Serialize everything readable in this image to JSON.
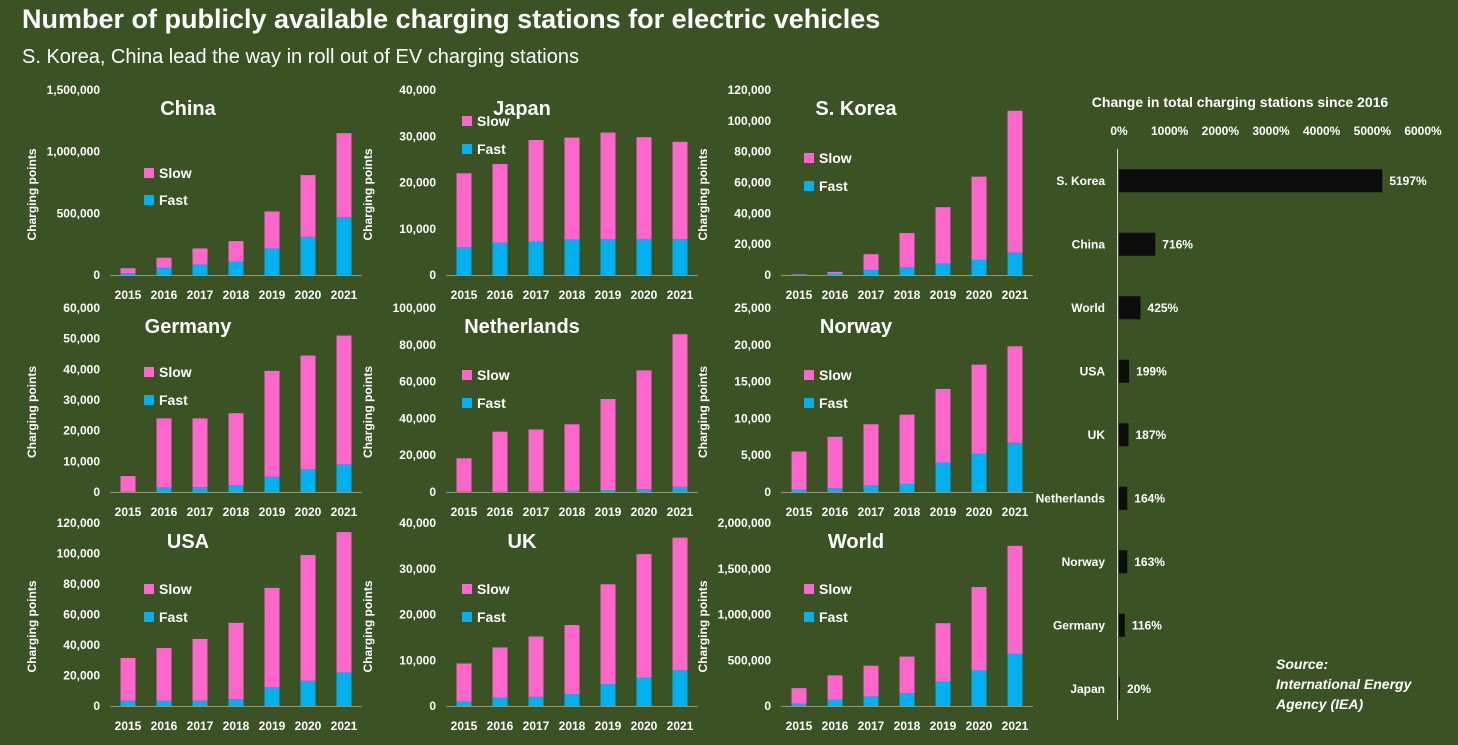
{
  "title": "Number of publicly available charging stations for electric vehicles",
  "subtitle": "S. Korea, China lead the way in roll out of EV charging stations",
  "source": "Source:\nInternational Energy\nAgency (IEA)",
  "colors": {
    "background": "#3a5224",
    "slow": "#ff66cc",
    "fast": "#00b0f0",
    "bar": "#0d0d0d",
    "text": "#ffffff"
  },
  "chart_data": [
    {
      "type": "bar",
      "stacked": true,
      "title": "China",
      "ylabel": "Charging points",
      "categories": [
        "2015",
        "2016",
        "2017",
        "2018",
        "2019",
        "2020",
        "2021"
      ],
      "yticks": [
        "0",
        "500,000",
        "1,000,000",
        "1,500,000"
      ],
      "ylim": [
        0,
        1500000
      ],
      "series": [
        {
          "name": "Fast",
          "values": [
            15000,
            60000,
            85000,
            110000,
            215000,
            310000,
            470000
          ]
        },
        {
          "name": "Slow",
          "values": [
            40000,
            80000,
            130000,
            165000,
            300000,
            500000,
            680000
          ]
        }
      ]
    },
    {
      "type": "bar",
      "stacked": true,
      "title": "Japan",
      "ylabel": "Charging points",
      "categories": [
        "2015",
        "2016",
        "2017",
        "2018",
        "2019",
        "2020",
        "2021"
      ],
      "yticks": [
        "0",
        "10,000",
        "20,000",
        "30,000",
        "40,000"
      ],
      "ylim": [
        0,
        40000
      ],
      "series": [
        {
          "name": "Fast",
          "values": [
            6000,
            7000,
            7200,
            7700,
            7800,
            7800,
            7800
          ]
        },
        {
          "name": "Slow",
          "values": [
            16000,
            17000,
            22000,
            22000,
            23000,
            22000,
            21000
          ]
        }
      ]
    },
    {
      "type": "bar",
      "stacked": true,
      "title": "S. Korea",
      "ylabel": "Charging points",
      "categories": [
        "2015",
        "2016",
        "2017",
        "2018",
        "2019",
        "2020",
        "2021"
      ],
      "yticks": [
        "0",
        "20,000",
        "40,000",
        "60,000",
        "80,000",
        "100,000",
        "120,000"
      ],
      "ylim": [
        0,
        120000
      ],
      "series": [
        {
          "name": "Fast",
          "values": [
            200,
            800,
            3300,
            5200,
            7500,
            9800,
            14500
          ]
        },
        {
          "name": "Slow",
          "values": [
            300,
            1200,
            10200,
            22000,
            36500,
            54000,
            92000
          ]
        }
      ]
    },
    {
      "type": "bar",
      "stacked": true,
      "title": "Germany",
      "ylabel": "Charging points",
      "categories": [
        "2015",
        "2016",
        "2017",
        "2018",
        "2019",
        "2020",
        "2021"
      ],
      "yticks": [
        "0",
        "10,000",
        "20,000",
        "30,000",
        "40,000",
        "50,000",
        "60,000"
      ],
      "ylim": [
        0,
        60000
      ],
      "series": [
        {
          "name": "Fast",
          "values": [
            200,
            1500,
            1600,
            2200,
            5000,
            7500,
            9000
          ]
        },
        {
          "name": "Slow",
          "values": [
            5000,
            22500,
            22400,
            23500,
            34500,
            37000,
            42000
          ]
        }
      ]
    },
    {
      "type": "bar",
      "stacked": true,
      "title": "Netherlands",
      "ylabel": "Charging points",
      "categories": [
        "2015",
        "2016",
        "2017",
        "2018",
        "2019",
        "2020",
        "2021"
      ],
      "yticks": [
        "0",
        "20,000",
        "40,000",
        "60,000",
        "80,000",
        "100,000"
      ],
      "ylim": [
        0,
        100000
      ],
      "series": [
        {
          "name": "Fast",
          "values": [
            300,
            300,
            500,
            800,
            1000,
            1600,
            2800
          ]
        },
        {
          "name": "Slow",
          "values": [
            18000,
            32500,
            33500,
            36000,
            49500,
            64500,
            83000
          ]
        }
      ]
    },
    {
      "type": "bar",
      "stacked": true,
      "title": "Norway",
      "ylabel": "Charging points",
      "categories": [
        "2015",
        "2016",
        "2017",
        "2018",
        "2019",
        "2020",
        "2021"
      ],
      "yticks": [
        "0",
        "5,000",
        "10,000",
        "15,000",
        "20,000",
        "25,000"
      ],
      "ylim": [
        0,
        25000
      ],
      "series": [
        {
          "name": "Fast",
          "values": [
            300,
            500,
            900,
            1100,
            4000,
            5200,
            6700
          ]
        },
        {
          "name": "Slow",
          "values": [
            5200,
            7000,
            8300,
            9400,
            10000,
            12100,
            13100
          ]
        }
      ]
    },
    {
      "type": "bar",
      "stacked": true,
      "title": "USA",
      "ylabel": "Charging points",
      "categories": [
        "2015",
        "2016",
        "2017",
        "2018",
        "2019",
        "2020",
        "2021"
      ],
      "yticks": [
        "0",
        "20,000",
        "40,000",
        "60,000",
        "80,000",
        "100,000",
        "120,000"
      ],
      "ylim": [
        0,
        120000
      ],
      "series": [
        {
          "name": "Fast",
          "values": [
            3500,
            3500,
            3500,
            4500,
            12500,
            16500,
            22000
          ]
        },
        {
          "name": "Slow",
          "values": [
            28000,
            34500,
            40500,
            50000,
            65000,
            82500,
            92000
          ]
        }
      ]
    },
    {
      "type": "bar",
      "stacked": true,
      "title": "UK",
      "ylabel": "Charging points",
      "categories": [
        "2015",
        "2016",
        "2017",
        "2018",
        "2019",
        "2020",
        "2021"
      ],
      "yticks": [
        "0",
        "10,000",
        "20,000",
        "30,000",
        "40,000"
      ],
      "ylim": [
        0,
        40000
      ],
      "series": [
        {
          "name": "Fast",
          "values": [
            1000,
            1800,
            2000,
            2600,
            4800,
            6200,
            7800
          ]
        },
        {
          "name": "Slow",
          "values": [
            8300,
            11000,
            13200,
            15100,
            21800,
            27000,
            29000
          ]
        }
      ]
    },
    {
      "type": "bar",
      "stacked": true,
      "title": "World",
      "ylabel": "Charging points",
      "categories": [
        "2015",
        "2016",
        "2017",
        "2018",
        "2019",
        "2020",
        "2021"
      ],
      "yticks": [
        "0",
        "500,000",
        "1,000,000",
        "1,500,000",
        "2,000,000"
      ],
      "ylim": [
        0,
        2000000
      ],
      "series": [
        {
          "name": "Fast",
          "values": [
            25000,
            70000,
            105000,
            140000,
            265000,
            390000,
            570000
          ]
        },
        {
          "name": "Slow",
          "values": [
            170000,
            265000,
            335000,
            400000,
            640000,
            910000,
            1180000
          ]
        }
      ]
    },
    {
      "type": "bar",
      "orientation": "horizontal",
      "title": "Change in total charging stations since 2016",
      "xticks": [
        "0%",
        "1000%",
        "2000%",
        "3000%",
        "4000%",
        "5000%",
        "6000%"
      ],
      "xlim": [
        0,
        6000
      ],
      "categories": [
        "S. Korea",
        "China",
        "World",
        "USA",
        "UK",
        "Netherlands",
        "Norway",
        "Germany",
        "Japan"
      ],
      "values": [
        5197,
        716,
        425,
        199,
        187,
        164,
        163,
        116,
        20
      ],
      "labels": [
        "5197%",
        "716%",
        "425%",
        "199%",
        "187%",
        "164%",
        "163%",
        "116%",
        "20%"
      ]
    }
  ]
}
